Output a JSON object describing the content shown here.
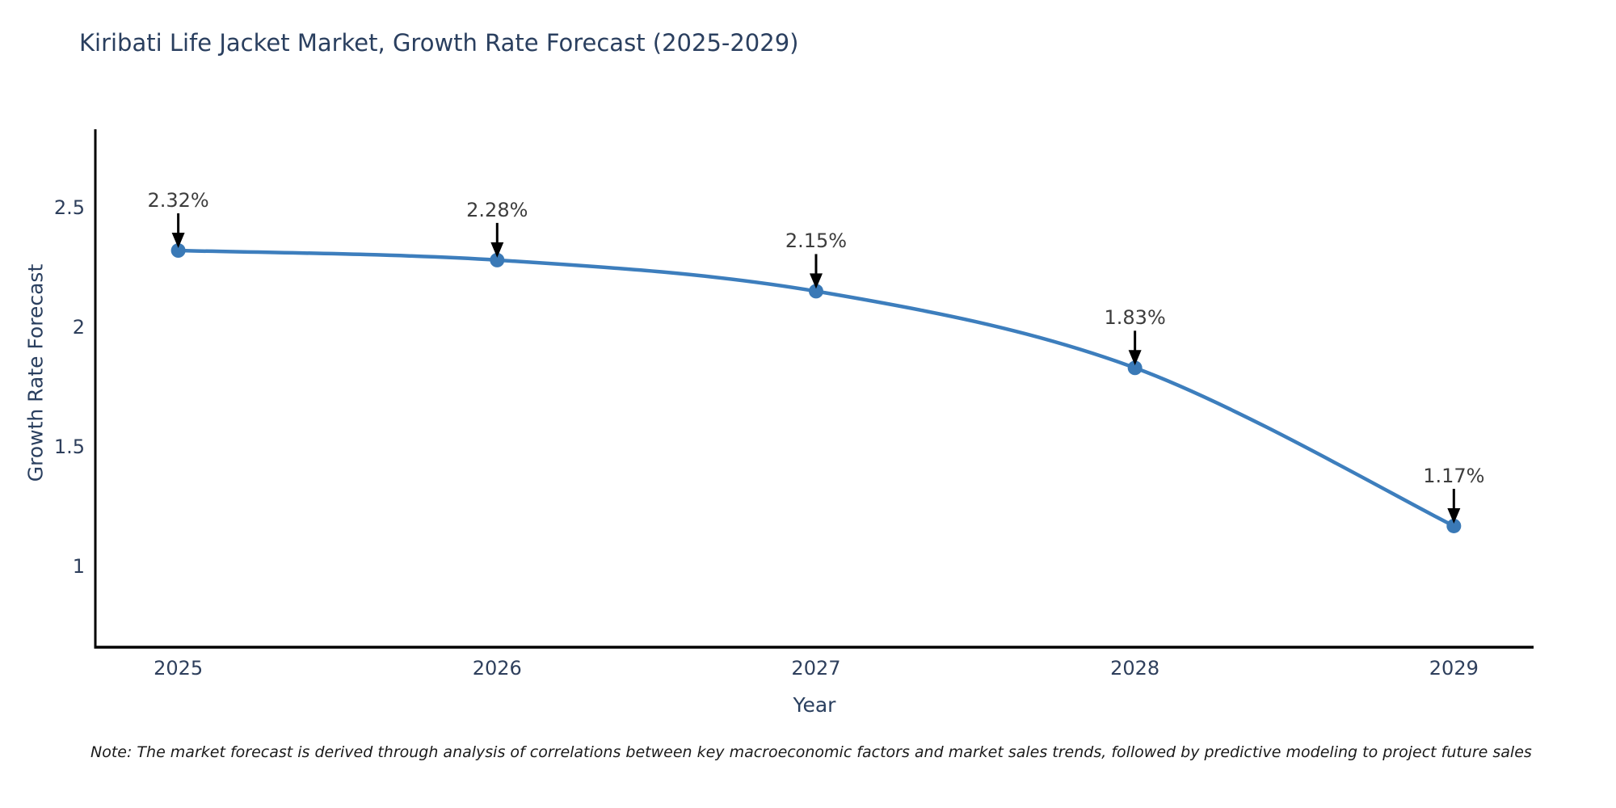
{
  "title": "Kiribati Life Jacket Market, Growth Rate Forecast (2025-2029)",
  "note": "Note: The market forecast is derived through analysis of correlations between key macroeconomic factors and market sales trends, followed by predictive modeling to project future sales",
  "chart_data": {
    "type": "line",
    "title": "Kiribati Life Jacket Market, Growth Rate Forecast (2025-2029)",
    "xlabel": "Year",
    "ylabel": "Growth Rate Forecast",
    "x": [
      2025,
      2026,
      2027,
      2028,
      2029
    ],
    "values": [
      2.32,
      2.28,
      2.15,
      1.83,
      1.17
    ],
    "annotations": [
      "2.32%",
      "2.28%",
      "2.15%",
      "1.83%",
      "1.17%"
    ],
    "xlim": [
      2024.74,
      2029.25
    ],
    "ylim": [
      0.664,
      2.826
    ],
    "xticks": {
      "values": [
        2025,
        2026,
        2027,
        2028,
        2029
      ],
      "labels": [
        "2025",
        "2026",
        "2027",
        "2028",
        "2029"
      ]
    },
    "yticks": {
      "values": [
        1,
        1.5,
        2,
        2.5
      ],
      "labels": [
        "1",
        "1.5",
        "2",
        "2.5"
      ]
    },
    "grid": false,
    "legend": false,
    "smooth": true,
    "colors": {
      "line": "#3d7ebd",
      "marker": "#3a79b6",
      "axis": "#000000",
      "tick_text": "#2e3f5c",
      "title_text": "#2a3f5f",
      "annotation_text": "#3d3d3d",
      "annotation_arrow": "#000000"
    }
  }
}
